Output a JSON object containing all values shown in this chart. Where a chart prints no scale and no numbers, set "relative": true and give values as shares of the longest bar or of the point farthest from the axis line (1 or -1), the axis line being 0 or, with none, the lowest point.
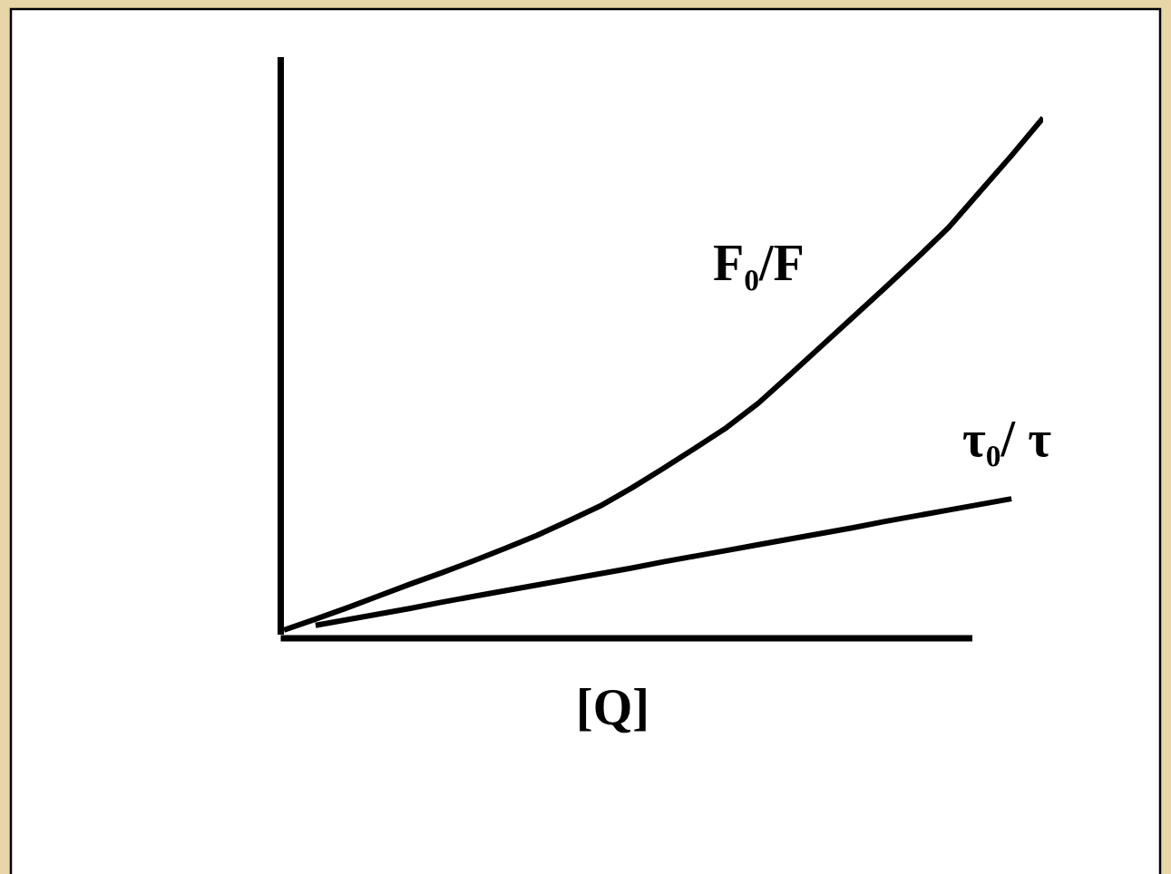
{
  "chart_data": {
    "type": "line",
    "relative": true,
    "xlabel": "[Q]",
    "categories": [
      null,
      null,
      null,
      null,
      null,
      null,
      null,
      null,
      null,
      null,
      null,
      null,
      null,
      null,
      null,
      null,
      null,
      null,
      null,
      null,
      null,
      null,
      null,
      null,
      null
    ],
    "series": [
      {
        "name": "F₀/F",
        "color": "#000000",
        "values": [
          0.009,
          0.03,
          0.052,
          0.075,
          0.098,
          0.12,
          0.143,
          0.167,
          0.192,
          0.22,
          0.249,
          0.284,
          0.322,
          0.361,
          0.401,
          0.448,
          0.503,
          0.559,
          0.615,
          0.671,
          0.728,
          0.787,
          0.857,
          0.927,
          1.0
        ]
      },
      {
        "name": "τ₀/ τ",
        "color": "#000000",
        "values": [
          null,
          0.018,
          0.029,
          0.04,
          0.051,
          0.063,
          0.074,
          0.085,
          0.096,
          0.107,
          0.118,
          0.129,
          0.141,
          0.152,
          0.163,
          0.174,
          0.185,
          0.196,
          0.207,
          0.219,
          0.23,
          0.241,
          0.252,
          0.263,
          null
        ]
      }
    ],
    "legend": false,
    "marker": "none",
    "line_style": "solid"
  }
}
